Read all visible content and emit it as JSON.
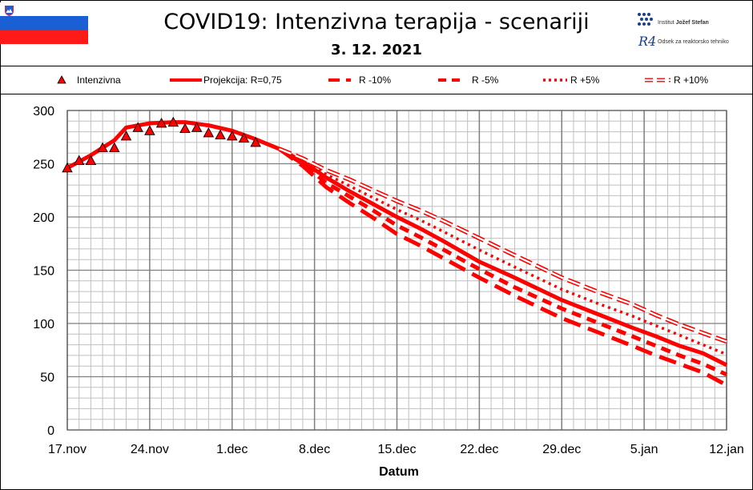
{
  "header": {
    "title": "COVID19: Intenzivna terapija - scenariji",
    "date": "3. 12. 2021",
    "institute_name_prefix": "Institut",
    "institute_name_bold": "Jožef Stefan",
    "logo_mark": "R4",
    "department": "Odsek za reaktorsko tehniko"
  },
  "colors": {
    "series": "#ff0000",
    "grid_major": "#7f7f7f",
    "grid_minor": "#bfbfbf",
    "flag_white": "#ffffff",
    "flag_blue": "#1a5fd4",
    "flag_red": "#ff1a1a"
  },
  "legend": [
    {
      "key": "observed",
      "label": "Intenzivna",
      "style": "triangle"
    },
    {
      "key": "projection",
      "label": "Projekcija: R=0,75",
      "style": "solid"
    },
    {
      "key": "m10",
      "label": "R -10%",
      "style": "longdash"
    },
    {
      "key": "m5",
      "label": "R -5%",
      "style": "dash"
    },
    {
      "key": "p5",
      "label": "R +5%",
      "style": "dotted"
    },
    {
      "key": "p10",
      "label": "R +10%",
      "style": "double"
    }
  ],
  "chart_data": {
    "type": "line",
    "title": "COVID19: Intenzivna terapija - scenariji",
    "subtitle": "3. 12. 2021",
    "xlabel": "Datum",
    "ylabel": "",
    "x_unit": "days since 17.nov",
    "xlim": [
      0,
      56
    ],
    "ylim": [
      0,
      300
    ],
    "yticks": [
      0,
      50,
      100,
      150,
      200,
      250,
      300
    ],
    "xticks": [
      {
        "day": 0,
        "label": "17.nov"
      },
      {
        "day": 7,
        "label": "24.nov"
      },
      {
        "day": 14,
        "label": "1.dec"
      },
      {
        "day": 21,
        "label": "8.dec"
      },
      {
        "day": 28,
        "label": "15.dec"
      },
      {
        "day": 35,
        "label": "22.dec"
      },
      {
        "day": 42,
        "label": "29.dec"
      },
      {
        "day": 49,
        "label": "5.jan"
      },
      {
        "day": 56,
        "label": "12.jan"
      }
    ],
    "grid": true,
    "series": [
      {
        "name": "Intenzivna",
        "style": "triangle",
        "x": [
          0,
          1,
          2,
          3,
          4,
          5,
          6,
          7,
          8,
          9,
          10,
          11,
          12,
          13,
          14,
          15,
          16
        ],
        "values": [
          246,
          253,
          253,
          265,
          265,
          276,
          284,
          281,
          288,
          289,
          283,
          284,
          279,
          277,
          276,
          274,
          270
        ]
      },
      {
        "name": "Projekcija: R=0,75",
        "style": "solid",
        "x": [
          0,
          2,
          4,
          5,
          7,
          9,
          10,
          12,
          14,
          16,
          18,
          20,
          22,
          24,
          26,
          28,
          30,
          32,
          35,
          38,
          42,
          45,
          48,
          50,
          52,
          54,
          56
        ],
        "values": [
          246,
          258,
          272,
          284,
          288,
          289,
          289,
          286,
          281,
          273,
          264,
          252,
          237,
          224,
          212,
          200,
          189,
          177,
          158,
          143,
          122,
          109,
          96,
          88,
          79,
          72,
          61
        ]
      },
      {
        "name": "R -10%",
        "style": "longdash",
        "x": [
          18,
          20,
          22,
          24,
          26,
          28,
          30,
          32,
          35,
          38,
          42,
          45,
          48,
          50,
          52,
          54,
          56
        ],
        "values": [
          264,
          248,
          228,
          213,
          199,
          184,
          173,
          161,
          143,
          126,
          105,
          92,
          79,
          70,
          62,
          54,
          42
        ]
      },
      {
        "name": "R -5%",
        "style": "dash",
        "x": [
          18,
          20,
          22,
          24,
          26,
          28,
          30,
          32,
          35,
          38,
          42,
          45,
          48,
          50,
          52,
          54,
          56
        ],
        "values": [
          264,
          250,
          232,
          219,
          206,
          192,
          181,
          169,
          151,
          134,
          114,
          101,
          88,
          79,
          70,
          62,
          52
        ]
      },
      {
        "name": "R +5%",
        "style": "dotted",
        "x": [
          18,
          20,
          22,
          24,
          26,
          28,
          30,
          32,
          35,
          38,
          42,
          45,
          48,
          50,
          52,
          54,
          56
        ],
        "values": [
          264,
          253,
          240,
          229,
          218,
          207,
          197,
          186,
          169,
          153,
          132,
          119,
          107,
          98,
          89,
          80,
          71
        ]
      },
      {
        "name": "R +10%",
        "style": "double",
        "x": [
          18,
          20,
          22,
          24,
          26,
          28,
          30,
          32,
          35,
          38,
          42,
          45,
          48,
          50,
          52,
          54,
          56
        ],
        "values": [
          264,
          255,
          244,
          235,
          225,
          215,
          206,
          196,
          180,
          164,
          143,
          130,
          118,
          108,
          99,
          91,
          83
        ]
      }
    ]
  }
}
